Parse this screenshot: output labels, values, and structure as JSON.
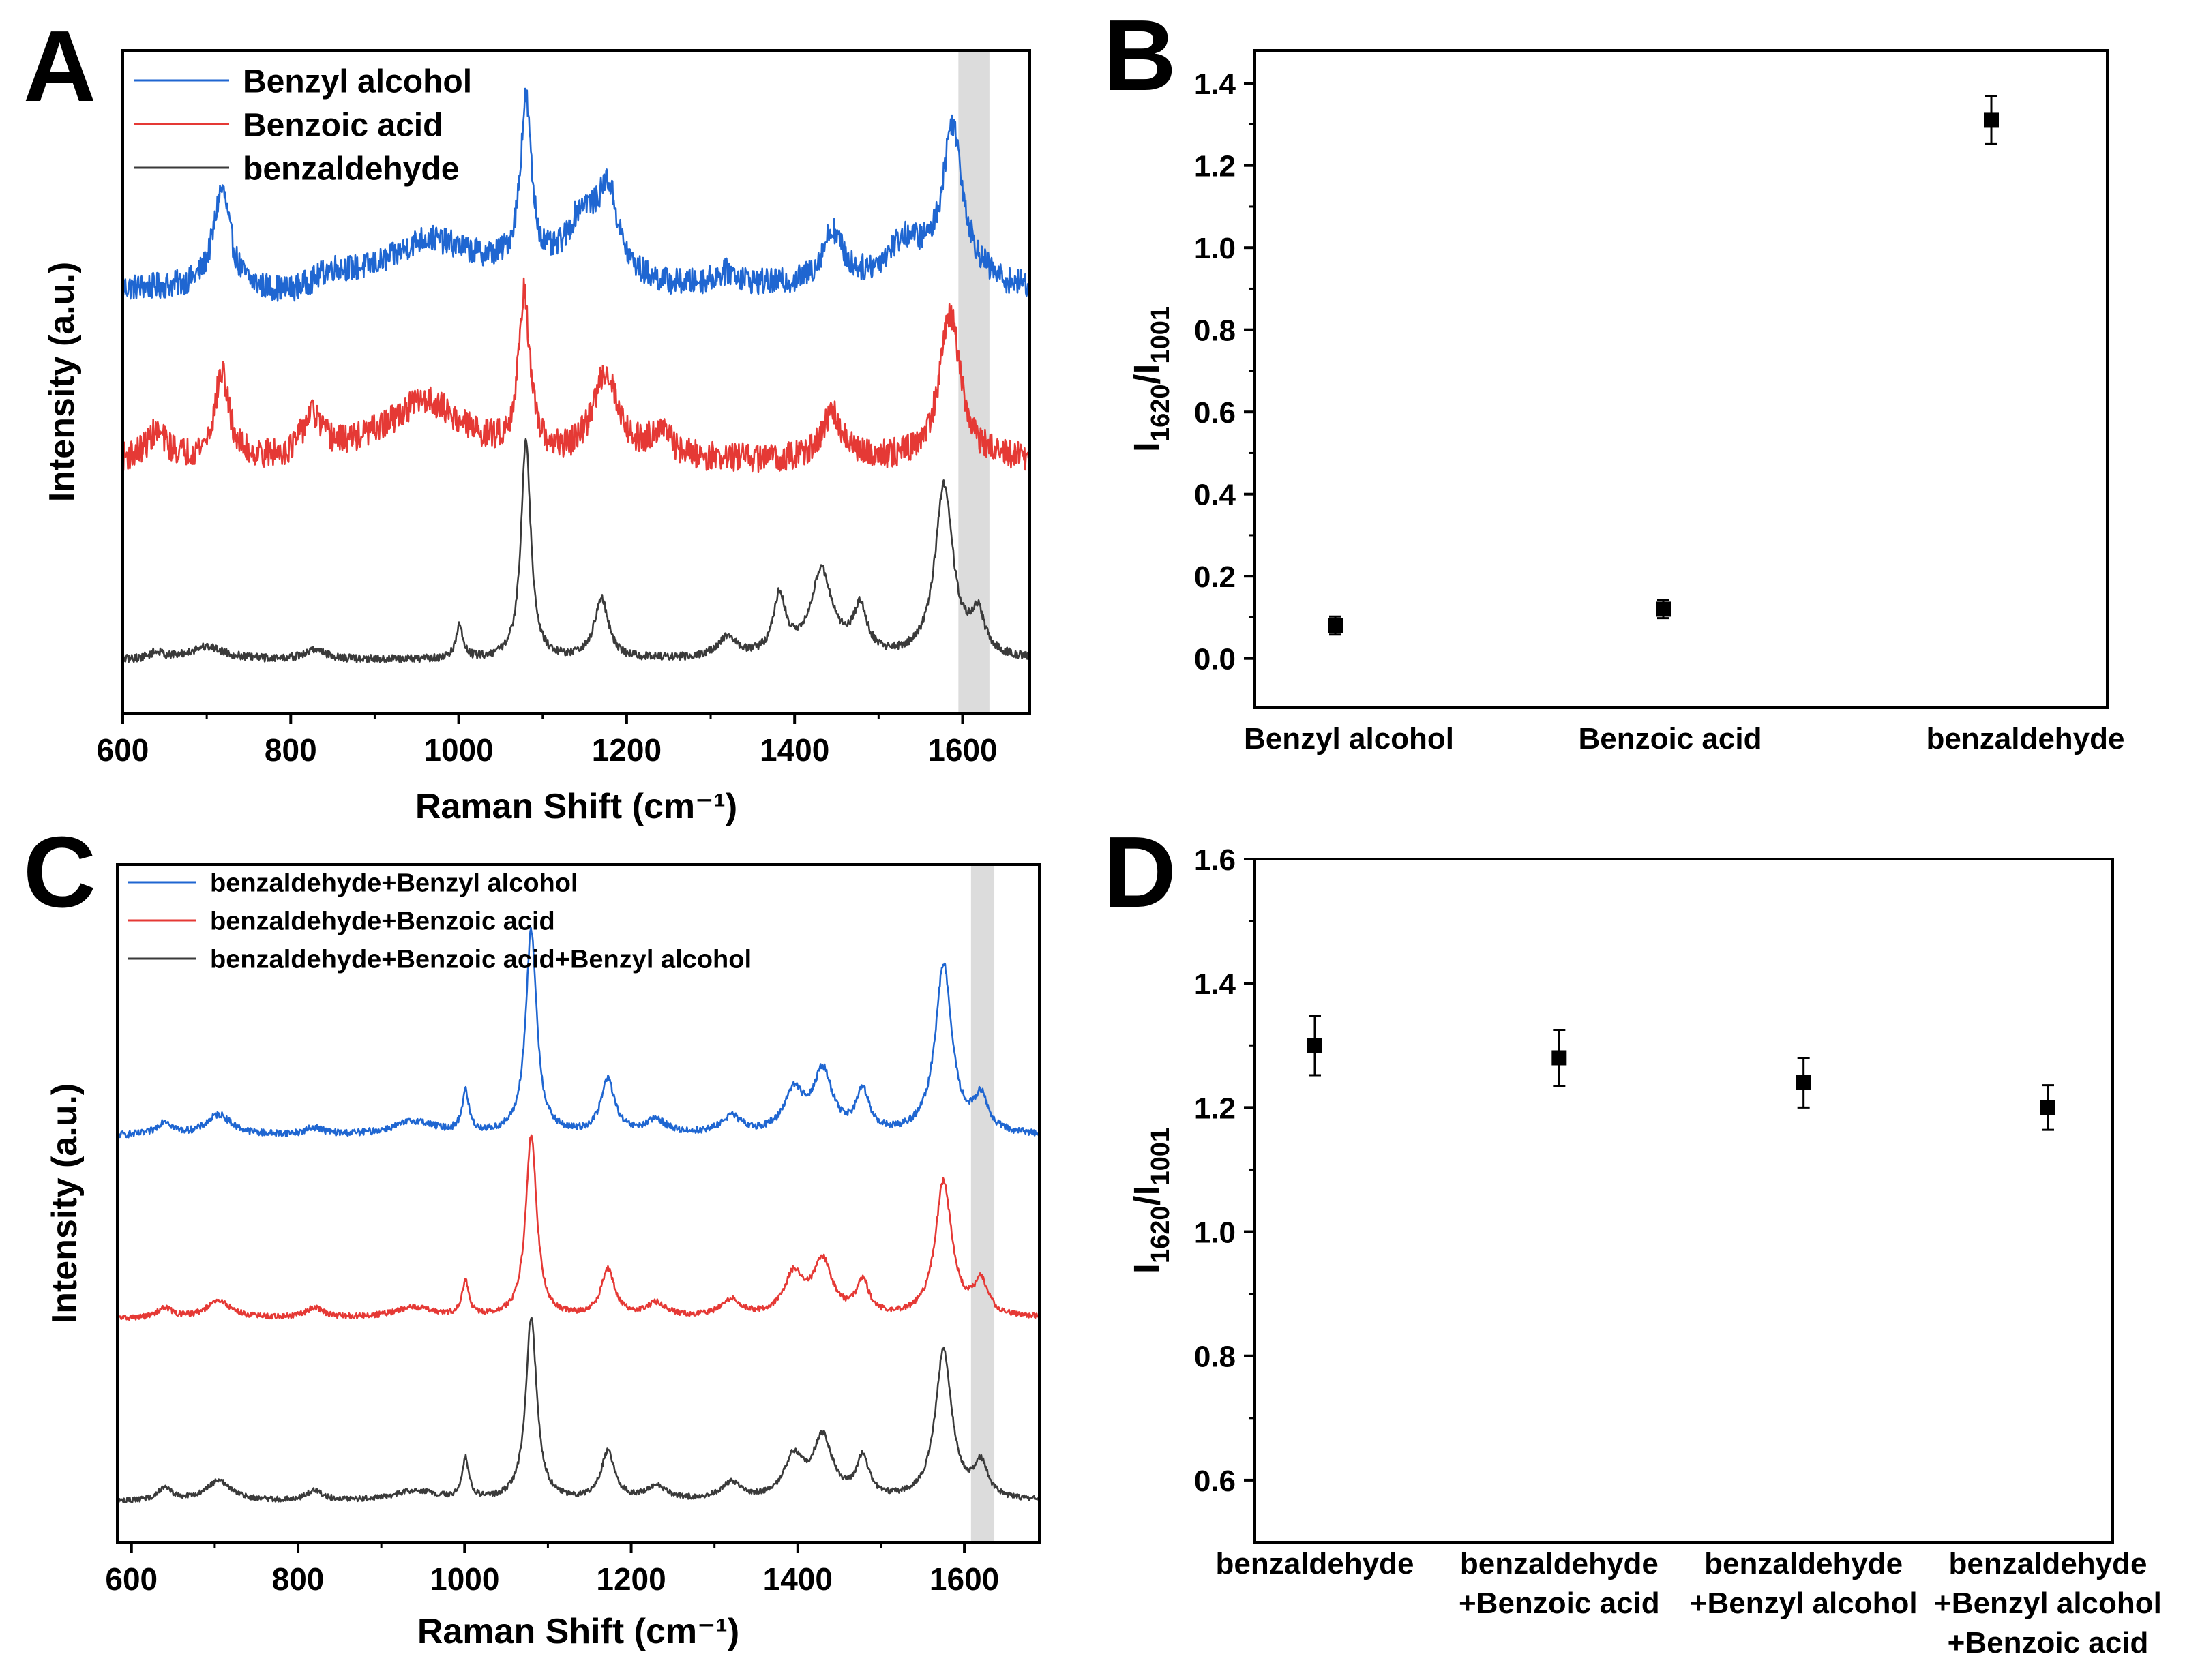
{
  "panels": {
    "A": {
      "letter": "A"
    },
    "B": {
      "letter": "B"
    },
    "C": {
      "letter": "C"
    },
    "D": {
      "letter": "D"
    }
  },
  "colors": {
    "blue": "#1f66d1",
    "red": "#e53935",
    "gray": "#3a3a3a",
    "band": "#dcdcdc"
  },
  "chart_data": [
    {
      "id": "A",
      "type": "line",
      "title": "",
      "xlabel": "Raman Shift (cm⁻¹)",
      "ylabel": "Intensity (a.u.)",
      "xlim": [
        600,
        1680
      ],
      "x_ticks": [
        600,
        800,
        1000,
        1200,
        1400,
        1600
      ],
      "highlight_band": [
        1595,
        1632
      ],
      "legend_position": "top-left",
      "y_ticks_shown": false,
      "series": [
        {
          "name": "Benzyl alcohol",
          "color": "#1f66d1",
          "offset": 0.64,
          "noise": 0.02,
          "baseline": [
            [
              600,
              0.0
            ],
            [
              700,
              0.0
            ],
            [
              800,
              -0.01
            ],
            [
              900,
              0.02
            ],
            [
              1000,
              0.04
            ],
            [
              1100,
              0.02
            ],
            [
              1250,
              0.0
            ],
            [
              1350,
              0.0
            ],
            [
              1500,
              0.0
            ],
            [
              1600,
              0.02
            ],
            [
              1650,
              0.0
            ],
            [
              1675,
              0.0
            ]
          ],
          "peaks": [
            [
              718,
              0.15,
              12
            ],
            [
              850,
              0.02,
              25
            ],
            [
              960,
              0.04,
              40
            ],
            [
              1080,
              0.25,
              8
            ],
            [
              1148,
              0.09,
              22
            ],
            [
              1178,
              0.12,
              14
            ],
            [
              1320,
              0.02,
              20
            ],
            [
              1445,
              0.08,
              15
            ],
            [
              1530,
              0.06,
              30
            ],
            [
              1588,
              0.22,
              14
            ]
          ]
        },
        {
          "name": "Benzoic acid",
          "color": "#e53935",
          "offset": 0.38,
          "noise": 0.022,
          "baseline": [
            [
              600,
              0.0
            ],
            [
              700,
              0.0
            ],
            [
              800,
              0.0
            ],
            [
              900,
              0.02
            ],
            [
              1000,
              0.02
            ],
            [
              1100,
              0.0
            ],
            [
              1250,
              0.0
            ],
            [
              1400,
              0.0
            ],
            [
              1550,
              0.0
            ],
            [
              1600,
              0.0
            ],
            [
              1675,
              0.0
            ]
          ],
          "peaks": [
            [
              640,
              0.04,
              15
            ],
            [
              718,
              0.13,
              10
            ],
            [
              825,
              0.06,
              14
            ],
            [
              960,
              0.07,
              45
            ],
            [
              1078,
              0.24,
              8
            ],
            [
              1175,
              0.13,
              18
            ],
            [
              1240,
              0.04,
              15
            ],
            [
              1445,
              0.07,
              14
            ],
            [
              1585,
              0.22,
              15
            ]
          ]
        },
        {
          "name": "benzaldehyde",
          "color": "#3a3a3a",
          "offset": 0.08,
          "noise": 0.006,
          "baseline": [
            [
              600,
              0.0
            ],
            [
              1675,
              0.0
            ]
          ],
          "peaks": [
            [
              640,
              0.01,
              10
            ],
            [
              700,
              0.02,
              25
            ],
            [
              830,
              0.015,
              15
            ],
            [
              1001,
              0.05,
              5
            ],
            [
              1080,
              0.33,
              7
            ],
            [
              1170,
              0.09,
              10
            ],
            [
              1320,
              0.03,
              15
            ],
            [
              1382,
              0.09,
              9
            ],
            [
              1432,
              0.13,
              16
            ],
            [
              1478,
              0.07,
              10
            ],
            [
              1578,
              0.26,
              13
            ],
            [
              1618,
              0.06,
              10
            ]
          ]
        }
      ]
    },
    {
      "id": "B",
      "type": "scatter",
      "title": "",
      "xlabel": "",
      "ylabel": "I1620/I1001",
      "ylabel_main": "I",
      "ylabel_sub1": "1620",
      "ylabel_slash": "/I",
      "ylabel_sub2": "1001",
      "categories": [
        "Benzyl alcohol",
        "Benzoic acid",
        "benzaldehyde"
      ],
      "category_lines": [
        [
          "Benzyl alcohol"
        ],
        [
          "Benzoic acid"
        ],
        [
          "benzaldehyde"
        ]
      ],
      "values": [
        0.08,
        0.12,
        1.31
      ],
      "errors": [
        0.022,
        0.022,
        0.058
      ],
      "ylim": [
        -0.12,
        1.48
      ],
      "y_ticks": [
        0.0,
        0.2,
        0.4,
        0.6,
        0.8,
        1.0,
        1.2,
        1.4
      ],
      "y_tick_labels": [
        "0.0",
        "0.2",
        "0.4",
        "0.6",
        "0.8",
        "1.0",
        "1.2",
        "1.4"
      ]
    },
    {
      "id": "C",
      "type": "line",
      "title": "",
      "xlabel": "Raman Shift (cm⁻¹)",
      "ylabel": "Intensity (a.u.)",
      "xlim": [
        583,
        1690
      ],
      "x_ticks": [
        600,
        800,
        1000,
        1200,
        1400,
        1600
      ],
      "highlight_band": [
        1608,
        1636
      ],
      "legend_position": "top-left",
      "y_ticks_shown": false,
      "series": [
        {
          "name": "benzaldehyde+Benzyl alcohol",
          "color": "#1f66d1",
          "offset": 0.6,
          "noise": 0.005,
          "baseline": [
            [
              583,
              0.0
            ],
            [
              1690,
              0.0
            ]
          ],
          "peaks": [
            [
              640,
              0.02,
              10
            ],
            [
              705,
              0.03,
              18
            ],
            [
              820,
              0.01,
              12
            ],
            [
              940,
              0.02,
              30
            ],
            [
              1001,
              0.06,
              5
            ],
            [
              1080,
              0.3,
              8
            ],
            [
              1172,
              0.08,
              10
            ],
            [
              1230,
              0.02,
              15
            ],
            [
              1320,
              0.025,
              15
            ],
            [
              1395,
              0.06,
              14
            ],
            [
              1430,
              0.09,
              14
            ],
            [
              1478,
              0.06,
              9
            ],
            [
              1575,
              0.25,
              12
            ],
            [
              1620,
              0.05,
              10
            ]
          ]
        },
        {
          "name": "benzaldehyde+Benzoic acid",
          "color": "#e53935",
          "offset": 0.33,
          "noise": 0.004,
          "baseline": [
            [
              583,
              0.0
            ],
            [
              1690,
              0.0
            ]
          ],
          "peaks": [
            [
              640,
              0.015,
              10
            ],
            [
              705,
              0.025,
              18
            ],
            [
              820,
              0.015,
              12
            ],
            [
              940,
              0.015,
              30
            ],
            [
              1001,
              0.05,
              5
            ],
            [
              1080,
              0.27,
              8
            ],
            [
              1172,
              0.07,
              10
            ],
            [
              1230,
              0.02,
              15
            ],
            [
              1320,
              0.025,
              15
            ],
            [
              1395,
              0.06,
              14
            ],
            [
              1430,
              0.08,
              14
            ],
            [
              1478,
              0.05,
              9
            ],
            [
              1575,
              0.2,
              12
            ],
            [
              1620,
              0.05,
              10
            ]
          ]
        },
        {
          "name": "benzaldehyde+Benzoic acid+Benzyl alcohol",
          "color": "#3a3a3a",
          "offset": 0.06,
          "noise": 0.004,
          "baseline": [
            [
              583,
              0.0
            ],
            [
              1690,
              0.0
            ]
          ],
          "peaks": [
            [
              640,
              0.02,
              10
            ],
            [
              705,
              0.03,
              18
            ],
            [
              820,
              0.015,
              12
            ],
            [
              940,
              0.015,
              30
            ],
            [
              1001,
              0.06,
              5
            ],
            [
              1080,
              0.27,
              8
            ],
            [
              1172,
              0.07,
              10
            ],
            [
              1230,
              0.02,
              15
            ],
            [
              1320,
              0.025,
              15
            ],
            [
              1395,
              0.06,
              14
            ],
            [
              1430,
              0.09,
              14
            ],
            [
              1478,
              0.06,
              9
            ],
            [
              1575,
              0.22,
              12
            ],
            [
              1620,
              0.05,
              10
            ]
          ]
        }
      ]
    },
    {
      "id": "D",
      "type": "scatter",
      "title": "",
      "xlabel": "",
      "ylabel": "I1620/I1001",
      "ylabel_main": "I",
      "ylabel_sub1": "1620",
      "ylabel_slash": "/I",
      "ylabel_sub2": "1001",
      "categories": [
        "benzaldehyde",
        "benzaldehyde +Benzoic acid",
        "benzaldehyde +Benzyl alcohol",
        "benzaldehyde +Benzyl alcohol +Benzoic acid"
      ],
      "category_lines": [
        [
          "benzaldehyde"
        ],
        [
          "benzaldehyde",
          "+Benzoic acid"
        ],
        [
          "benzaldehyde",
          "+Benzyl alcohol"
        ],
        [
          "benzaldehyde",
          "+Benzyl alcohol",
          "+Benzoic acid"
        ]
      ],
      "values": [
        1.3,
        1.28,
        1.24,
        1.2
      ],
      "errors": [
        0.048,
        0.045,
        0.04,
        0.036
      ],
      "ylim": [
        0.5,
        1.6
      ],
      "y_ticks": [
        0.6,
        0.8,
        1.0,
        1.2,
        1.4,
        1.6
      ],
      "y_tick_labels": [
        "0.6",
        "0.8",
        "1.0",
        "1.2",
        "1.4",
        "1.6"
      ]
    }
  ]
}
